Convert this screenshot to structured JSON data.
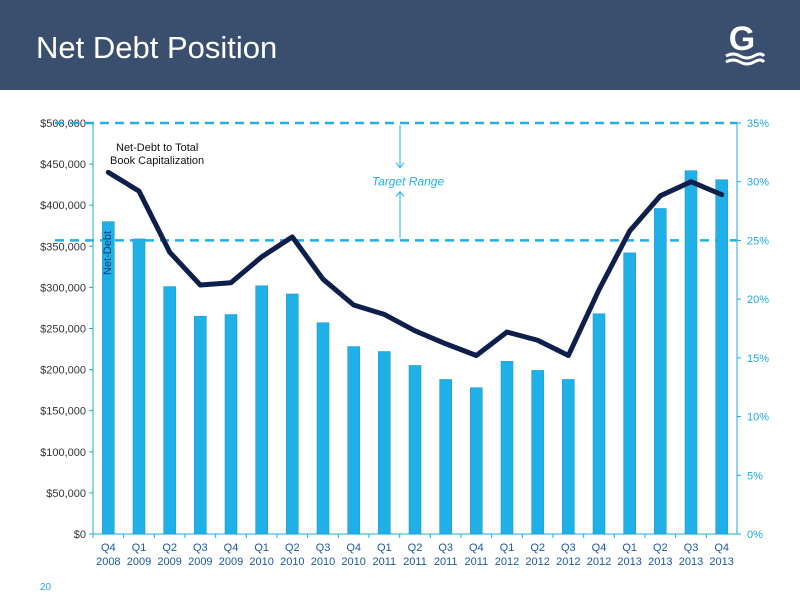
{
  "header": {
    "title": "Net Debt Position",
    "logo_letter": "G",
    "background_color": "#3a4f6e"
  },
  "page_number": "20",
  "chart_data": {
    "type": "bar",
    "categories": [
      [
        "Q4",
        "2008"
      ],
      [
        "Q1",
        "2009"
      ],
      [
        "Q2",
        "2009"
      ],
      [
        "Q3",
        "2009"
      ],
      [
        "Q4",
        "2009"
      ],
      [
        "Q1",
        "2010"
      ],
      [
        "Q2",
        "2010"
      ],
      [
        "Q3",
        "2010"
      ],
      [
        "Q4",
        "2010"
      ],
      [
        "Q1",
        "2011"
      ],
      [
        "Q2",
        "2011"
      ],
      [
        "Q3",
        "2011"
      ],
      [
        "Q4",
        "2011"
      ],
      [
        "Q1",
        "2012"
      ],
      [
        "Q2",
        "2012"
      ],
      [
        "Q3",
        "2012"
      ],
      [
        "Q4",
        "2012"
      ],
      [
        "Q1",
        "2013"
      ],
      [
        "Q2",
        "2013"
      ],
      [
        "Q3",
        "2013"
      ],
      [
        "Q4",
        "2013"
      ]
    ],
    "series": [
      {
        "name": "Net-Debt",
        "type": "bar",
        "axis": "left",
        "color": "#1fb0e8",
        "values": [
          380000,
          359000,
          301000,
          265000,
          267000,
          302000,
          292000,
          257000,
          228000,
          222000,
          205000,
          188000,
          178000,
          210000,
          199000,
          188000,
          268000,
          342000,
          396000,
          442000,
          431000
        ]
      },
      {
        "name": "Net-Debt to Total Book Capitalization",
        "type": "line",
        "axis": "right",
        "color": "#0d1f4a",
        "values": [
          30.8,
          29.2,
          24.0,
          21.2,
          21.4,
          23.6,
          25.3,
          21.7,
          19.5,
          18.7,
          17.3,
          16.2,
          15.2,
          17.2,
          16.5,
          15.2,
          20.8,
          25.8,
          28.8,
          30.0,
          28.9
        ]
      }
    ],
    "left_axis": {
      "min": 0,
      "max": 500000,
      "step": 50000,
      "tick_labels": [
        "$0",
        "$50,000",
        "$100,000",
        "$150,000",
        "$200,000",
        "$250,000",
        "$300,000",
        "$350,000",
        "$400,000",
        "$450,000",
        "$500,000"
      ]
    },
    "right_axis": {
      "min": 0,
      "max": 35,
      "step": 5,
      "tick_labels": [
        "0%",
        "5%",
        "10%",
        "15%",
        "20%",
        "25%",
        "30%",
        "35%"
      ]
    },
    "target_range": {
      "label": "Target Range",
      "lower": 25,
      "upper": 35,
      "color": "#1fb0e8"
    },
    "annotations": {
      "line_label_1": "Net-Debt to Total",
      "line_label_2": "Book Capitalization",
      "bar_label": "Net-Debt"
    },
    "grid": false,
    "axis_color": "#1fa8e0"
  }
}
